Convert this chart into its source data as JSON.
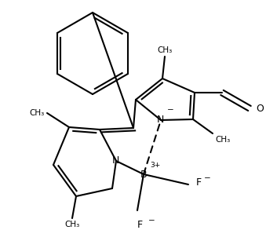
{
  "bg_color": "#ffffff",
  "line_color": "#000000",
  "lw": 1.5,
  "figsize": [
    3.39,
    3.07
  ],
  "dpi": 100,
  "xlim": [
    0,
    339
  ],
  "ylim": [
    0,
    307
  ]
}
